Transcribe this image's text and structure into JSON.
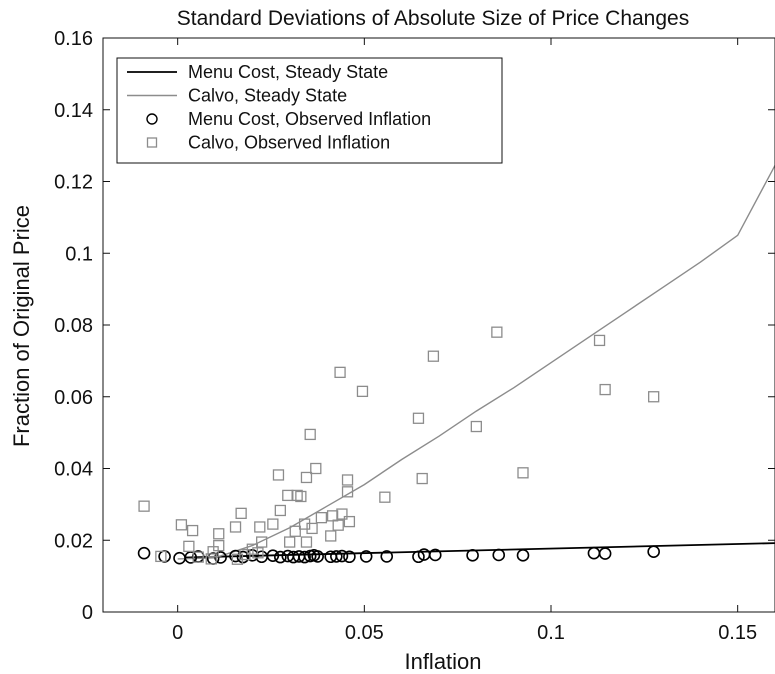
{
  "chart_data": {
    "type": "scatter",
    "title": "Standard Deviations of Absolute Size of Price Changes",
    "xlabel": "Inflation",
    "ylabel": "Fraction of Original Price",
    "xlim": [
      -0.02,
      0.16
    ],
    "ylim": [
      0,
      0.16
    ],
    "xticks": [
      0,
      0.05,
      0.1,
      0.15
    ],
    "xtick_labels": [
      "0",
      "0.05",
      "0.1",
      "0.15"
    ],
    "yticks": [
      0,
      0.02,
      0.04,
      0.06,
      0.08,
      0.1,
      0.12,
      0.14,
      0.16
    ],
    "ytick_labels": [
      "0",
      "0.02",
      "0.04",
      "0.06",
      "0.08",
      "0.1",
      "0.12",
      "0.14",
      "0.16"
    ],
    "grid": false,
    "legend_position": "top-left",
    "colors": {
      "menu_cost": "#000000",
      "calvo": "#8c8c8c"
    },
    "series": [
      {
        "name": "Menu Cost, Steady State",
        "kind": "line",
        "color": "#000000",
        "points": [
          [
            0.002,
            0.0152
          ],
          [
            0.16,
            0.0192
          ]
        ]
      },
      {
        "name": "Calvo, Steady State",
        "kind": "line",
        "color": "#8c8c8c",
        "points": [
          [
            0.0,
            0.0148
          ],
          [
            0.01,
            0.0151
          ],
          [
            0.02,
            0.0185
          ],
          [
            0.03,
            0.0235
          ],
          [
            0.04,
            0.0295
          ],
          [
            0.05,
            0.0355
          ],
          [
            0.06,
            0.0425
          ],
          [
            0.07,
            0.049
          ],
          [
            0.08,
            0.056
          ],
          [
            0.09,
            0.0625
          ],
          [
            0.1,
            0.0695
          ],
          [
            0.11,
            0.0765
          ],
          [
            0.12,
            0.0835
          ],
          [
            0.13,
            0.0905
          ],
          [
            0.14,
            0.0975
          ],
          [
            0.15,
            0.105
          ],
          [
            0.16,
            0.1245
          ]
        ]
      },
      {
        "name": "Menu Cost, Observed Inflation",
        "kind": "scatter",
        "marker": "circle",
        "color": "#000000",
        "points": [
          [
            -0.009,
            0.0164
          ],
          [
            -0.0035,
            0.0155
          ],
          [
            0.0005,
            0.015
          ],
          [
            0.0035,
            0.0152
          ],
          [
            0.0055,
            0.0155
          ],
          [
            0.0095,
            0.0149
          ],
          [
            0.0115,
            0.0152
          ],
          [
            0.0155,
            0.0156
          ],
          [
            0.0175,
            0.0153
          ],
          [
            0.02,
            0.0158
          ],
          [
            0.0225,
            0.0154
          ],
          [
            0.0255,
            0.0157
          ],
          [
            0.0275,
            0.0153
          ],
          [
            0.0295,
            0.0156
          ],
          [
            0.031,
            0.0153
          ],
          [
            0.0325,
            0.0155
          ],
          [
            0.034,
            0.0153
          ],
          [
            0.0355,
            0.0156
          ],
          [
            0.0365,
            0.0158
          ],
          [
            0.0375,
            0.0155
          ],
          [
            0.041,
            0.0154
          ],
          [
            0.0425,
            0.0155
          ],
          [
            0.044,
            0.0156
          ],
          [
            0.046,
            0.0154
          ],
          [
            0.0505,
            0.0155
          ],
          [
            0.056,
            0.0155
          ],
          [
            0.0645,
            0.0154
          ],
          [
            0.066,
            0.016
          ],
          [
            0.069,
            0.0159
          ],
          [
            0.079,
            0.0158
          ],
          [
            0.086,
            0.0159
          ],
          [
            0.0925,
            0.0158
          ],
          [
            0.1115,
            0.0164
          ],
          [
            0.1145,
            0.0163
          ],
          [
            0.1275,
            0.0168
          ]
        ]
      },
      {
        "name": "Calvo, Observed Inflation",
        "kind": "scatter",
        "marker": "square",
        "color": "#8c8c8c",
        "points": [
          [
            -0.009,
            0.0295
          ],
          [
            -0.0045,
            0.0155
          ],
          [
            0.001,
            0.0243
          ],
          [
            0.003,
            0.0183
          ],
          [
            0.004,
            0.0227
          ],
          [
            0.0055,
            0.0153
          ],
          [
            0.009,
            0.0148
          ],
          [
            0.0095,
            0.0168
          ],
          [
            0.011,
            0.0218
          ],
          [
            0.011,
            0.0185
          ],
          [
            0.0155,
            0.0237
          ],
          [
            0.016,
            0.0147
          ],
          [
            0.017,
            0.0275
          ],
          [
            0.018,
            0.016
          ],
          [
            0.02,
            0.0175
          ],
          [
            0.0215,
            0.0165
          ],
          [
            0.022,
            0.0237
          ],
          [
            0.0225,
            0.0195
          ],
          [
            0.0255,
            0.0245
          ],
          [
            0.027,
            0.0382
          ],
          [
            0.0275,
            0.0283
          ],
          [
            0.0295,
            0.0325
          ],
          [
            0.03,
            0.0195
          ],
          [
            0.0315,
            0.0225
          ],
          [
            0.032,
            0.0325
          ],
          [
            0.033,
            0.0322
          ],
          [
            0.034,
            0.0245
          ],
          [
            0.0345,
            0.0195
          ],
          [
            0.0345,
            0.0375
          ],
          [
            0.0355,
            0.0495
          ],
          [
            0.036,
            0.0233
          ],
          [
            0.037,
            0.04
          ],
          [
            0.0385,
            0.0263
          ],
          [
            0.041,
            0.0212
          ],
          [
            0.0415,
            0.0268
          ],
          [
            0.043,
            0.0242
          ],
          [
            0.0435,
            0.0668
          ],
          [
            0.044,
            0.0273
          ],
          [
            0.0455,
            0.0335
          ],
          [
            0.0455,
            0.0368
          ],
          [
            0.046,
            0.0252
          ],
          [
            0.0495,
            0.0615
          ],
          [
            0.0555,
            0.032
          ],
          [
            0.0645,
            0.054
          ],
          [
            0.0655,
            0.0372
          ],
          [
            0.0685,
            0.0713
          ],
          [
            0.08,
            0.0517
          ],
          [
            0.0855,
            0.078
          ],
          [
            0.0925,
            0.0388
          ],
          [
            0.113,
            0.0757
          ],
          [
            0.1145,
            0.062
          ],
          [
            0.1275,
            0.06
          ]
        ]
      }
    ]
  }
}
